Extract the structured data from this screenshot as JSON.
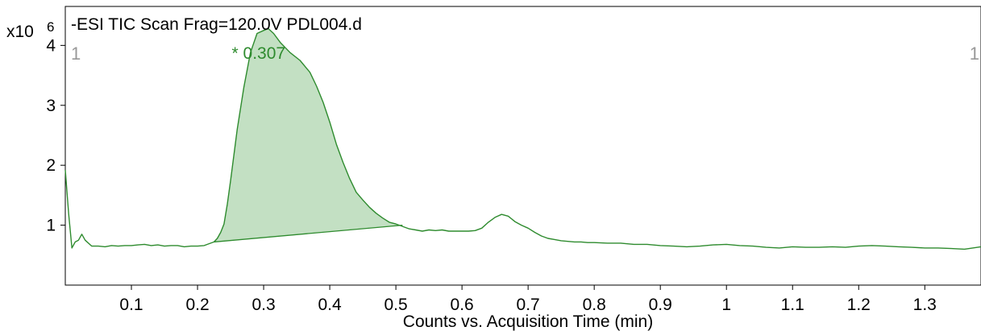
{
  "chart_data": {
    "type": "line",
    "title": "-ESI TIC Scan Frag=120.0V PDL004.d",
    "xlabel": "Counts vs. Acquisition Time (min)",
    "y_multiplier": "x10",
    "y_multiplier_exp": "6",
    "xlim": [
      0.0,
      1.385
    ],
    "ylim": [
      0.0,
      4.65
    ],
    "x_ticks": [
      "0.1",
      "0.2",
      "0.3",
      "0.4",
      "0.5",
      "0.6",
      "0.7",
      "0.8",
      "0.9",
      "1",
      "1.1",
      "1.2",
      "1.3"
    ],
    "y_ticks": [
      "1",
      "2",
      "3",
      "4"
    ],
    "corner_label_left": "1",
    "corner_label_right": "1",
    "peak_label": "* 0.307",
    "peak_x": 0.307,
    "peak_y": 4.28,
    "line_color": "#2e8b2e",
    "fill_color": "#c3e0c3",
    "baseline": {
      "x": [
        0.225,
        0.51
      ],
      "y": [
        0.72,
        1.0
      ]
    },
    "series": [
      {
        "x": [
          0.0,
          0.005,
          0.01,
          0.015,
          0.02,
          0.025,
          0.03,
          0.04,
          0.05,
          0.06,
          0.07,
          0.08,
          0.09,
          0.1,
          0.11,
          0.12,
          0.13,
          0.14,
          0.15,
          0.16,
          0.17,
          0.18,
          0.19,
          0.2,
          0.21,
          0.215,
          0.225,
          0.23,
          0.235,
          0.24,
          0.245,
          0.25,
          0.26,
          0.27,
          0.28,
          0.29,
          0.3,
          0.307,
          0.315,
          0.325,
          0.34,
          0.355,
          0.37,
          0.38,
          0.39,
          0.4,
          0.41,
          0.42,
          0.43,
          0.44,
          0.45,
          0.46,
          0.47,
          0.48,
          0.49,
          0.5,
          0.51,
          0.52,
          0.53,
          0.54,
          0.55,
          0.56,
          0.57,
          0.58,
          0.59,
          0.6,
          0.61,
          0.62,
          0.63,
          0.64,
          0.65,
          0.66,
          0.67,
          0.68,
          0.69,
          0.7,
          0.71,
          0.72,
          0.73,
          0.74,
          0.75,
          0.76,
          0.77,
          0.78,
          0.79,
          0.8,
          0.82,
          0.84,
          0.86,
          0.88,
          0.9,
          0.92,
          0.94,
          0.96,
          0.98,
          1.0,
          1.02,
          1.04,
          1.06,
          1.08,
          1.1,
          1.12,
          1.14,
          1.16,
          1.18,
          1.2,
          1.22,
          1.24,
          1.26,
          1.28,
          1.3,
          1.32,
          1.34,
          1.36,
          1.385
        ],
        "y": [
          1.92,
          1.2,
          0.62,
          0.72,
          0.75,
          0.85,
          0.75,
          0.65,
          0.65,
          0.64,
          0.66,
          0.65,
          0.66,
          0.66,
          0.67,
          0.68,
          0.66,
          0.67,
          0.65,
          0.66,
          0.66,
          0.64,
          0.65,
          0.65,
          0.66,
          0.68,
          0.72,
          0.78,
          0.88,
          1.02,
          1.35,
          1.75,
          2.6,
          3.3,
          3.88,
          4.2,
          4.25,
          4.28,
          4.2,
          4.05,
          3.88,
          3.75,
          3.55,
          3.32,
          3.05,
          2.72,
          2.35,
          2.05,
          1.78,
          1.55,
          1.42,
          1.3,
          1.2,
          1.12,
          1.05,
          1.02,
          0.98,
          0.94,
          0.92,
          0.9,
          0.92,
          0.91,
          0.92,
          0.9,
          0.9,
          0.9,
          0.9,
          0.91,
          0.95,
          1.05,
          1.13,
          1.18,
          1.15,
          1.06,
          1.0,
          0.95,
          0.88,
          0.82,
          0.78,
          0.76,
          0.74,
          0.73,
          0.72,
          0.72,
          0.71,
          0.71,
          0.7,
          0.7,
          0.68,
          0.68,
          0.66,
          0.65,
          0.64,
          0.65,
          0.67,
          0.68,
          0.66,
          0.65,
          0.63,
          0.62,
          0.64,
          0.63,
          0.63,
          0.64,
          0.63,
          0.65,
          0.66,
          0.65,
          0.64,
          0.63,
          0.62,
          0.62,
          0.61,
          0.6,
          0.64
        ]
      }
    ]
  }
}
